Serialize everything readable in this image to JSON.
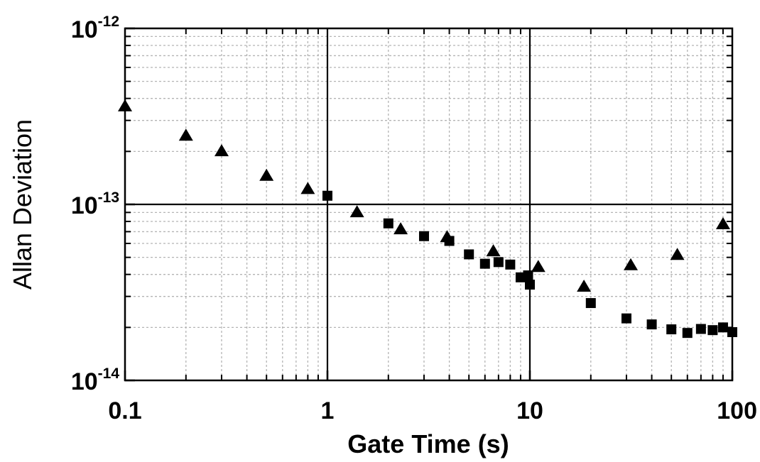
{
  "chart_data": {
    "type": "scatter",
    "xlabel": "Gate Time (s)",
    "ylabel": "Allan Deviation",
    "x_scale": "log",
    "y_scale": "log",
    "xlim": [
      0.1,
      100
    ],
    "ylim": [
      1e-14,
      1e-12
    ],
    "grid": true,
    "x_ticks": [
      {
        "value": 0.1,
        "label": "0.1"
      },
      {
        "value": 1,
        "label": "1"
      },
      {
        "value": 10,
        "label": "10"
      },
      {
        "value": 100,
        "label": "100"
      }
    ],
    "y_ticks": [
      {
        "value": 1e-14,
        "base": "10",
        "exp": "-14"
      },
      {
        "value": 1e-13,
        "base": "10",
        "exp": "-13"
      },
      {
        "value": 1e-12,
        "base": "10",
        "exp": "-12"
      }
    ],
    "series": [
      {
        "marker": "triangle",
        "color": "#000000",
        "points": [
          {
            "x": 0.1,
            "y": 3.6e-13
          },
          {
            "x": 0.2,
            "y": 2.45e-13
          },
          {
            "x": 0.3,
            "y": 2e-13
          },
          {
            "x": 0.5,
            "y": 1.45e-13
          },
          {
            "x": 0.8,
            "y": 1.22e-13
          },
          {
            "x": 1.4,
            "y": 9e-14
          },
          {
            "x": 2.3,
            "y": 7.2e-14
          },
          {
            "x": 3.9,
            "y": 6.5e-14
          },
          {
            "x": 6.6,
            "y": 5.4e-14
          },
          {
            "x": 11,
            "y": 4.4e-14
          },
          {
            "x": 18.5,
            "y": 3.4e-14
          },
          {
            "x": 31.5,
            "y": 4.5e-14
          },
          {
            "x": 53.5,
            "y": 5.15e-14
          },
          {
            "x": 90,
            "y": 7.7e-14
          }
        ]
      },
      {
        "marker": "square",
        "color": "#000000",
        "points": [
          {
            "x": 1,
            "y": 1.12e-13
          },
          {
            "x": 2,
            "y": 7.8e-14
          },
          {
            "x": 3,
            "y": 6.6e-14
          },
          {
            "x": 4,
            "y": 6.2e-14
          },
          {
            "x": 5,
            "y": 5.2e-14
          },
          {
            "x": 6,
            "y": 4.6e-14
          },
          {
            "x": 7,
            "y": 4.7e-14
          },
          {
            "x": 8,
            "y": 4.55e-14
          },
          {
            "x": 9,
            "y": 3.85e-14
          },
          {
            "x": 9.8,
            "y": 3.95e-14
          },
          {
            "x": 10,
            "y": 3.5e-14
          },
          {
            "x": 20,
            "y": 2.75e-14
          },
          {
            "x": 30,
            "y": 2.25e-14
          },
          {
            "x": 40,
            "y": 2.08e-14
          },
          {
            "x": 50,
            "y": 1.95e-14
          },
          {
            "x": 60,
            "y": 1.86e-14
          },
          {
            "x": 70,
            "y": 1.96e-14
          },
          {
            "x": 80,
            "y": 1.93e-14
          },
          {
            "x": 90,
            "y": 2e-14
          },
          {
            "x": 100,
            "y": 1.88e-14
          }
        ]
      }
    ]
  }
}
